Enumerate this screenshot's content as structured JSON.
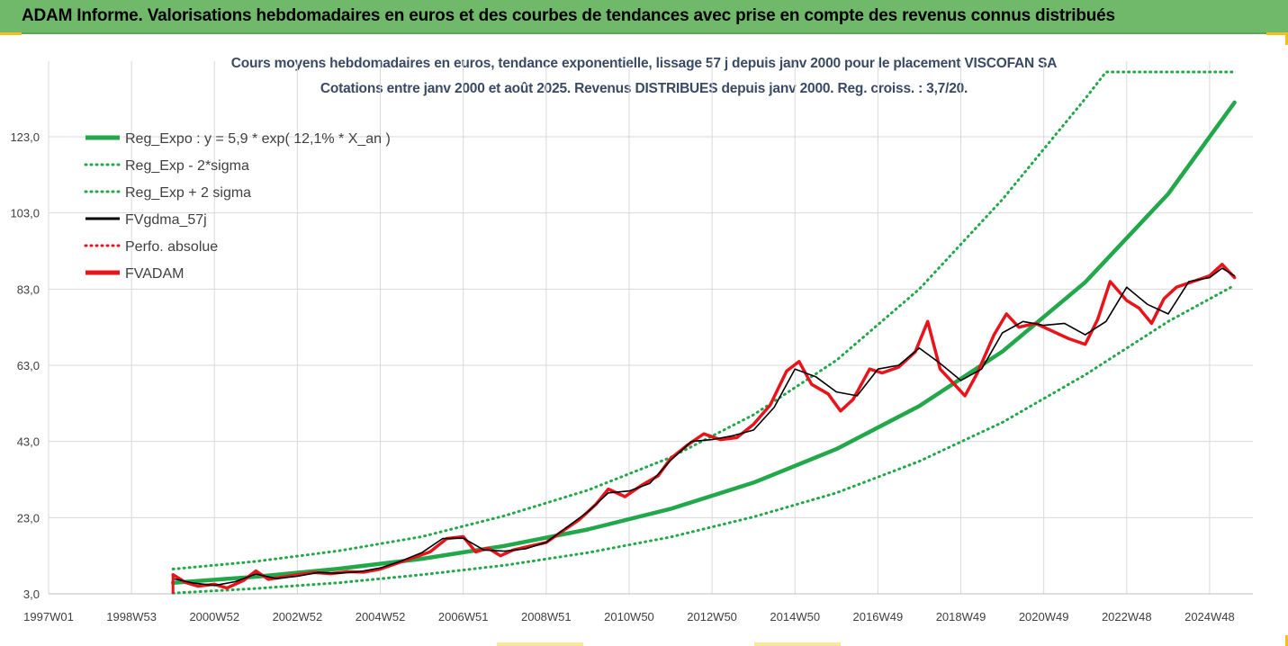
{
  "header": {
    "title": "ADAM Informe. Valorisations hebdomadaires en euros et des courbes de tendances avec prise en compte des revenus connus distribués"
  },
  "colors": {
    "header_bg": "#70b96b",
    "trend_green": "#22a84a",
    "price_red": "#e8141b",
    "smooth_black": "#000000",
    "accent_yellow": "#f2c01e"
  },
  "chart_data": {
    "type": "line",
    "title_line1": "Cours moyens hebdomadaires en euros, tendance exponentielle, lissage 57 j depuis janv 2000 pour le placement VISCOFAN SA",
    "title_line2": "Cotations entre janv 2000 et août 2025. Revenus DISTRIBUES depuis janv 2000. Reg. croiss. : 3,7/20.",
    "ylim": [
      3.0,
      140.0
    ],
    "y_ticks": [
      "3,0",
      "23,0",
      "43,0",
      "63,0",
      "83,0",
      "103,0",
      "123,0"
    ],
    "x_ticks": [
      "1997W01",
      "1998W53",
      "2000W52",
      "2002W52",
      "2004W52",
      "2006W51",
      "2008W51",
      "2010W50",
      "2012W50",
      "2014W50",
      "2016W49",
      "2018W49",
      "2020W49",
      "2022W48",
      "2024W48"
    ],
    "xlim": [
      1997.0,
      2025.7
    ],
    "grid": true,
    "legend_position": "top-left",
    "legend": [
      {
        "label": "Reg_Expo : y = 5,9 * exp( 12,1% *  X_an )",
        "style": "solid-thick",
        "color": "#22a84a"
      },
      {
        "label": "Reg_Exp - 2*sigma",
        "style": "dotted",
        "color": "#22a84a"
      },
      {
        "label": "Reg_Exp + 2 sigma",
        "style": "dotted",
        "color": "#22a84a"
      },
      {
        "label": "FVgdma_57j",
        "style": "solid",
        "color": "#000000"
      },
      {
        "label": "Perfo. absolue",
        "style": "dotted",
        "color": "#e8141b"
      },
      {
        "label": "FVADAM",
        "style": "solid-thick",
        "color": "#e8141b"
      }
    ],
    "series": [
      {
        "name": "Reg_Expo : y = 5,9 * exp( 12,1% *  X_an )",
        "x": [
          2000.0,
          2002.0,
          2004.0,
          2006.0,
          2008.0,
          2010.0,
          2012.0,
          2014.0,
          2016.0,
          2018.0,
          2020.0,
          2022.0,
          2024.0,
          2025.6
        ],
        "values": [
          5.9,
          7.5,
          9.6,
          12.2,
          15.6,
          19.9,
          25.3,
          32.2,
          41.0,
          52.3,
          66.6,
          84.8,
          108.0,
          132.0
        ]
      },
      {
        "name": "Reg_Exp - 2*sigma",
        "x": [
          2000.0,
          2002.0,
          2004.0,
          2006.0,
          2008.0,
          2010.0,
          2012.0,
          2014.0,
          2016.0,
          2018.0,
          2020.0,
          2022.0,
          2024.0,
          2025.6
        ],
        "values": [
          3.2,
          4.4,
          5.9,
          8.0,
          10.5,
          13.8,
          17.9,
          23.2,
          29.5,
          37.8,
          48.0,
          60.5,
          74.5,
          84.0
        ]
      },
      {
        "name": "Reg_Exp + 2 sigma",
        "x": [
          2000.0,
          2002.0,
          2004.0,
          2006.0,
          2008.0,
          2010.0,
          2012.0,
          2014.0,
          2016.0,
          2018.0,
          2020.0,
          2022.0,
          2022.5,
          2025.6
        ],
        "values": [
          9.5,
          11.5,
          14.3,
          18.0,
          23.5,
          30.2,
          38.8,
          50.0,
          64.3,
          83.0,
          106.5,
          133.0,
          140.0,
          140.0
        ]
      },
      {
        "name": "FVgdma_57j",
        "x": [
          2000.0,
          2000.5,
          2001.0,
          2001.5,
          2002.0,
          2002.5,
          2003.0,
          2003.5,
          2004.0,
          2004.5,
          2005.0,
          2005.5,
          2006.0,
          2006.5,
          2007.0,
          2007.5,
          2008.0,
          2008.5,
          2009.0,
          2009.5,
          2010.0,
          2010.5,
          2011.0,
          2011.5,
          2012.0,
          2012.5,
          2013.0,
          2013.5,
          2014.0,
          2014.5,
          2015.0,
          2015.5,
          2016.0,
          2016.5,
          2017.0,
          2017.5,
          2018.0,
          2018.5,
          2019.0,
          2019.5,
          2020.0,
          2020.5,
          2021.0,
          2021.5,
          2022.0,
          2022.5,
          2023.0,
          2023.5,
          2024.0,
          2024.5,
          2025.0,
          2025.3,
          2025.6
        ],
        "values": [
          7.0,
          5.8,
          5.2,
          6.2,
          8.2,
          7.0,
          7.6,
          8.6,
          8.4,
          8.8,
          9.8,
          11.6,
          13.8,
          17.5,
          17.6,
          14.5,
          14.2,
          14.8,
          16.5,
          20.5,
          24.5,
          29.5,
          30.0,
          32.0,
          38.0,
          43.0,
          43.5,
          44.5,
          46.0,
          52.0,
          62.0,
          60.0,
          56.0,
          55.0,
          62.0,
          63.0,
          67.5,
          63.5,
          59.0,
          62.0,
          71.5,
          74.5,
          73.5,
          74.0,
          71.0,
          74.5,
          83.5,
          79.0,
          76.5,
          85.0,
          86.0,
          88.5,
          86.5
        ]
      },
      {
        "name": "FVADAM",
        "x": [
          2000.0,
          2000.3,
          2000.6,
          2001.0,
          2001.3,
          2001.7,
          2002.0,
          2002.3,
          2002.7,
          2003.0,
          2003.4,
          2003.8,
          2004.2,
          2004.6,
          2005.0,
          2005.4,
          2005.8,
          2006.2,
          2006.6,
          2007.0,
          2007.3,
          2007.6,
          2007.9,
          2008.2,
          2008.6,
          2009.0,
          2009.4,
          2009.8,
          2010.2,
          2010.5,
          2010.9,
          2011.3,
          2011.7,
          2012.0,
          2012.4,
          2012.8,
          2013.2,
          2013.6,
          2014.0,
          2014.4,
          2014.8,
          2015.1,
          2015.4,
          2015.8,
          2016.1,
          2016.4,
          2016.8,
          2017.1,
          2017.5,
          2017.9,
          2018.2,
          2018.5,
          2018.8,
          2019.1,
          2019.4,
          2019.8,
          2020.1,
          2020.4,
          2020.8,
          2021.2,
          2021.6,
          2022.0,
          2022.3,
          2022.6,
          2023.0,
          2023.3,
          2023.6,
          2023.9,
          2024.2,
          2024.6,
          2025.0,
          2025.3,
          2025.6
        ],
        "values": [
          8.0,
          6.0,
          5.0,
          5.5,
          4.5,
          6.5,
          9.0,
          6.8,
          7.5,
          8.0,
          8.6,
          8.3,
          8.8,
          8.7,
          9.5,
          11.0,
          12.5,
          14.0,
          17.5,
          18.0,
          14.0,
          15.0,
          13.0,
          14.5,
          15.5,
          16.5,
          19.5,
          22.5,
          26.5,
          30.5,
          28.5,
          31.5,
          34.0,
          38.5,
          42.0,
          45.0,
          43.5,
          44.0,
          47.5,
          52.5,
          61.5,
          64.0,
          58.0,
          55.5,
          51.0,
          54.0,
          62.0,
          61.0,
          62.5,
          66.5,
          74.5,
          62.0,
          58.5,
          55.0,
          61.0,
          71.0,
          76.5,
          73.0,
          74.0,
          72.0,
          70.0,
          68.5,
          75.0,
          85.0,
          80.0,
          78.0,
          74.0,
          80.5,
          83.5,
          85.0,
          86.5,
          89.5,
          86.0
        ]
      }
    ]
  }
}
